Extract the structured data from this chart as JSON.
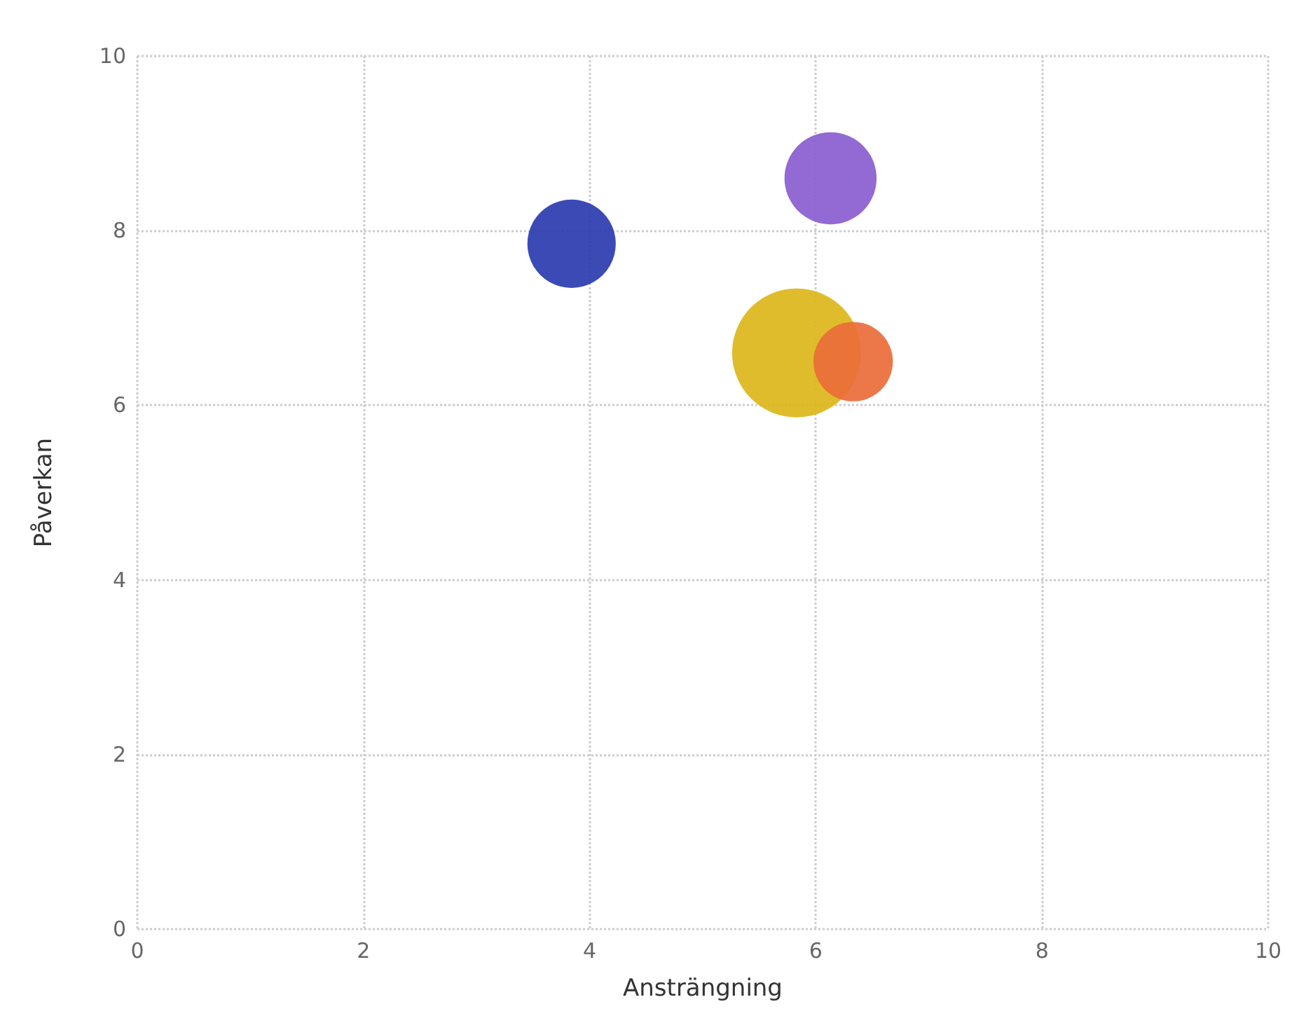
{
  "chart_data": {
    "type": "bubble",
    "xlabel": "Ansträngning",
    "ylabel": "Påverkan",
    "xlim": [
      0,
      10
    ],
    "ylim": [
      0,
      10
    ],
    "xticks": [
      0,
      2,
      4,
      6,
      8,
      10
    ],
    "yticks": [
      0,
      2,
      4,
      6,
      8,
      10
    ],
    "grid": true,
    "series": [
      {
        "color": "#2b3bb0",
        "x": [
          3.84
        ],
        "values": [
          7.85
        ],
        "sizes": [
          0.47
        ]
      },
      {
        "color": "#8a5ccf",
        "x": [
          6.13
        ],
        "values": [
          8.6
        ],
        "sizes": [
          0.51
        ]
      },
      {
        "color": "#dcb619",
        "x": [
          5.83
        ],
        "values": [
          6.6
        ],
        "sizes": [
          1
        ]
      },
      {
        "color": "#ea6c3a",
        "x": [
          6.33
        ],
        "values": [
          6.5
        ],
        "sizes": [
          0.38
        ]
      }
    ]
  }
}
